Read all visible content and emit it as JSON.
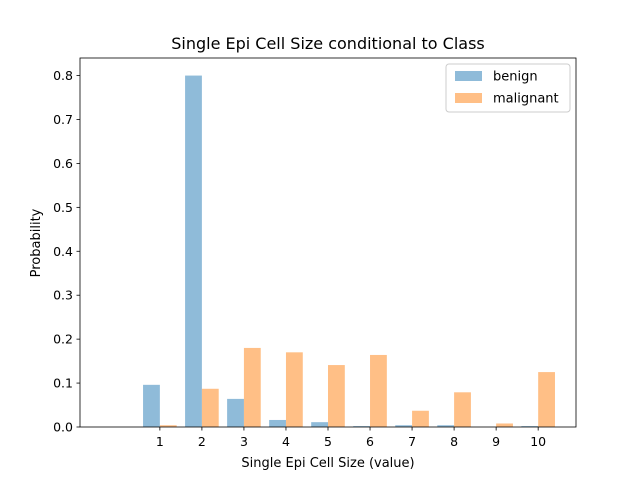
{
  "chart_data": {
    "type": "bar",
    "title": "Single Epi Cell Size conditional to Class",
    "xlabel": "Single Epi Cell Size (value)",
    "ylabel": "Probability",
    "categories": [
      "1",
      "2",
      "3",
      "4",
      "5",
      "6",
      "7",
      "8",
      "9",
      "10"
    ],
    "x": [
      1,
      2,
      3,
      4,
      5,
      6,
      7,
      8,
      9,
      10
    ],
    "xlim": [
      -0.9,
      10.9
    ],
    "ylim": [
      0,
      0.84
    ],
    "yticks": [
      0.0,
      0.1,
      0.2,
      0.3,
      0.4,
      0.5,
      0.6,
      0.7,
      0.8
    ],
    "ytick_labels": [
      "0.0",
      "0.1",
      "0.2",
      "0.3",
      "0.4",
      "0.5",
      "0.6",
      "0.7",
      "0.8"
    ],
    "grid": false,
    "legend_position": "top-right",
    "series": [
      {
        "name": "benign",
        "color": "#1f77b4",
        "opacity": 0.5,
        "values": [
          0.096,
          0.8,
          0.064,
          0.016,
          0.011,
          0.002,
          0.004,
          0.004,
          0.0,
          0.002
        ]
      },
      {
        "name": "malignant",
        "color": "#ff7f0e",
        "opacity": 0.5,
        "values": [
          0.004,
          0.087,
          0.18,
          0.17,
          0.141,
          0.164,
          0.037,
          0.079,
          0.008,
          0.125
        ]
      }
    ]
  }
}
